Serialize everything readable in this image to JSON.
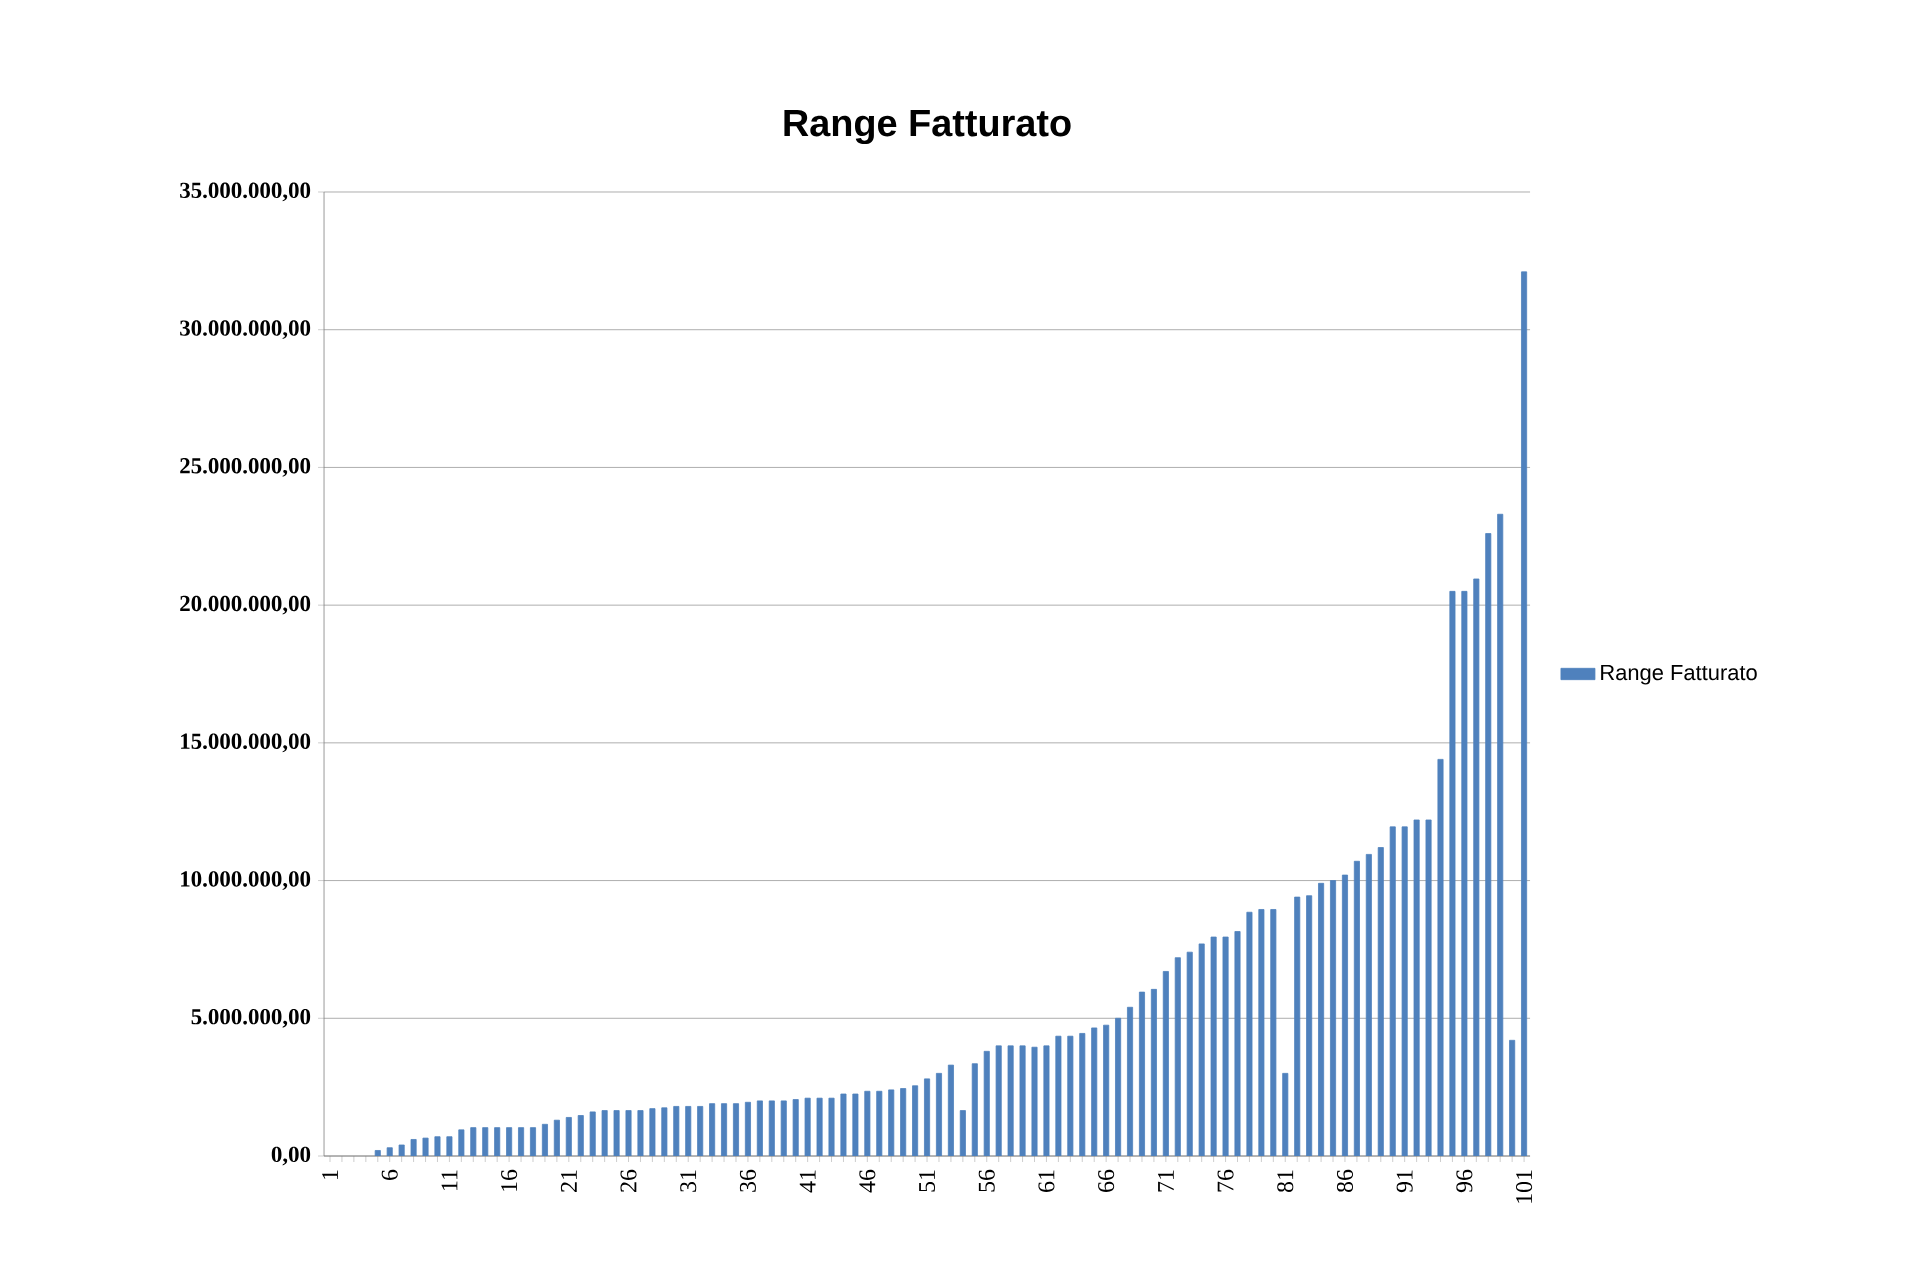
{
  "chart_data": {
    "type": "bar",
    "title": "Range Fatturato",
    "categories": [
      "1",
      null,
      null,
      null,
      null,
      "6",
      null,
      null,
      null,
      null,
      "11",
      null,
      null,
      null,
      null,
      "16",
      null,
      null,
      null,
      null,
      "21",
      null,
      null,
      null,
      null,
      "26",
      null,
      null,
      null,
      null,
      "31",
      null,
      null,
      null,
      null,
      "36",
      null,
      null,
      null,
      null,
      "41",
      null,
      null,
      null,
      null,
      "46",
      null,
      null,
      null,
      null,
      "51",
      null,
      null,
      null,
      null,
      "56",
      null,
      null,
      null,
      null,
      "61",
      null,
      null,
      null,
      null,
      "66",
      null,
      null,
      null,
      null,
      "71",
      null,
      null,
      null,
      null,
      "76",
      null,
      null,
      null,
      null,
      "81",
      null,
      null,
      null,
      null,
      "86",
      null,
      null,
      null,
      null,
      "91",
      null,
      null,
      null,
      null,
      "96",
      null,
      null,
      null,
      null,
      "101"
    ],
    "series": [
      {
        "name": "Range Fatturato",
        "color": "#4f81bd",
        "values": [
          null,
          null,
          null,
          null,
          200000,
          300000,
          400000,
          600000,
          650000,
          700000,
          700000,
          950000,
          1030000,
          1030000,
          1030000,
          1030000,
          1030000,
          1030000,
          1150000,
          1300000,
          1400000,
          1470000,
          1600000,
          1650000,
          1650000,
          1650000,
          1650000,
          1720000,
          1750000,
          1800000,
          1800000,
          1800000,
          1900000,
          1900000,
          1900000,
          1950000,
          2000000,
          2000000,
          2000000,
          2050000,
          2100000,
          2100000,
          2100000,
          2250000,
          2250000,
          2350000,
          2350000,
          2400000,
          2450000,
          2550000,
          2800000,
          3000000,
          3300000,
          1650000,
          3350000,
          3800000,
          4000000,
          4000000,
          4000000,
          3950000,
          4000000,
          4350000,
          4350000,
          4450000,
          4650000,
          4750000,
          5000000,
          5400000,
          5950000,
          6050000,
          6700000,
          7200000,
          7400000,
          7700000,
          7950000,
          7950000,
          8150000,
          8850000,
          8950000,
          8950000,
          3000000,
          9400000,
          9450000,
          9900000,
          10000000,
          10200000,
          10700000,
          10950000,
          11200000,
          11950000,
          11950000,
          12200000,
          12200000,
          14400000,
          20500000,
          20500000,
          20950000,
          22600000,
          23300000,
          4200000,
          32100000
        ]
      }
    ],
    "ylim": [
      0,
      35000000
    ],
    "yticks": [
      {
        "value": 0,
        "label": "0,00"
      },
      {
        "value": 5000000,
        "label": "5.000.000,00"
      },
      {
        "value": 10000000,
        "label": "10.000.000,00"
      },
      {
        "value": 15000000,
        "label": "15.000.000,00"
      },
      {
        "value": 20000000,
        "label": "20.000.000,00"
      },
      {
        "value": 25000000,
        "label": "25.000.000,00"
      },
      {
        "value": 30000000,
        "label": "30.000.000,00"
      },
      {
        "value": 35000000,
        "label": "35.000.000,00"
      }
    ],
    "grid": "y",
    "legend": "right"
  }
}
